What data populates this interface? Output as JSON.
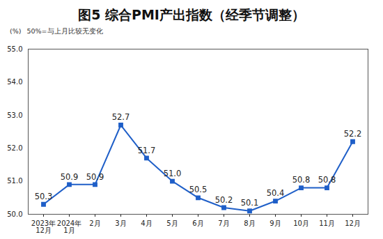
{
  "chart_data": {
    "type": "line",
    "title": "图5 综合PMI产出指数（经季节调整）",
    "ylabel": "(%)",
    "annotation": "50%=与上月比较无变化",
    "categories": [
      "2023年\n12月",
      "2024年\n1月",
      "2月",
      "3月",
      "4月",
      "5月",
      "6月",
      "7月",
      "8月",
      "9月",
      "10月",
      "11月",
      "12月"
    ],
    "values": [
      50.3,
      50.9,
      50.9,
      52.7,
      51.7,
      51.0,
      50.5,
      50.2,
      50.1,
      50.4,
      50.8,
      50.8,
      52.2
    ],
    "value_labels": [
      "50.3",
      "50.9",
      "50.9",
      "52.7",
      "51.7",
      "51.0",
      "50.5",
      "50.2",
      "50.1",
      "50.4",
      "50.8",
      "50.8",
      "52.2"
    ],
    "color": "#1f5fc8",
    "marker": "square",
    "data_labels": true,
    "grid": false,
    "ylim": [
      50,
      55
    ],
    "yticks": [
      50,
      51,
      52,
      53,
      54,
      55
    ]
  }
}
